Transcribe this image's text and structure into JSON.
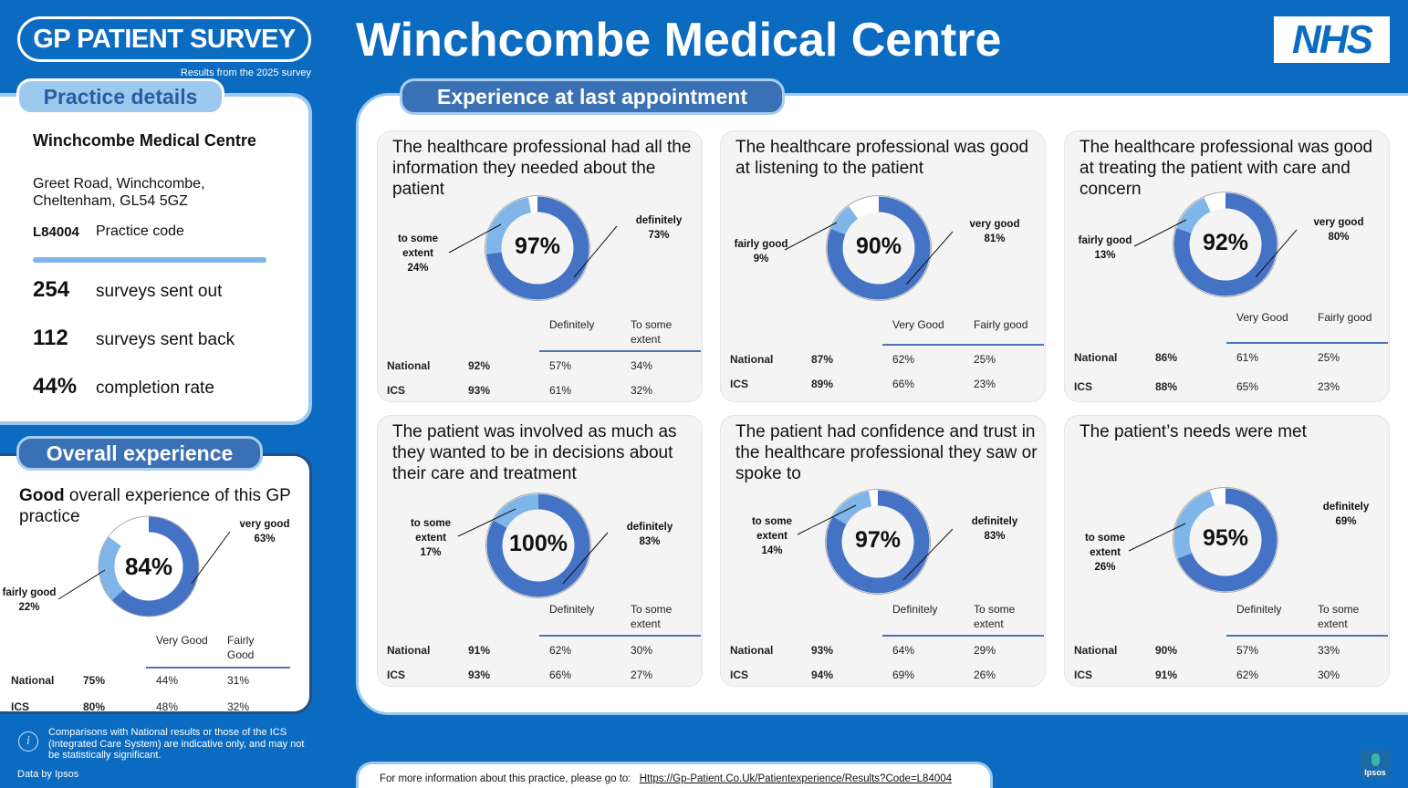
{
  "header": {
    "survey_logo": "GP PATIENT SURVEY",
    "survey_subtitle": "Results from the 2025 survey",
    "title": "Winchcombe Medical Centre",
    "nhs_logo": "NHS"
  },
  "practice": {
    "section_title": "Practice details",
    "name": "Winchcombe Medical Centre",
    "address_line1": "Greet Road, Winchcombe,",
    "address_line2": "Cheltenham, GL54 5GZ",
    "code": "L84004",
    "code_label": "Practice code",
    "stats": [
      {
        "value": "254",
        "label": "surveys sent out"
      },
      {
        "value": "112",
        "label": "surveys sent back"
      },
      {
        "value": "44%",
        "label": "completion rate"
      }
    ]
  },
  "overall": {
    "section_title": "Overall experience",
    "desc_bold": "Good",
    "desc_rest": " overall experience of this GP practice",
    "donut": {
      "pct": "84%",
      "primary": 63,
      "secondary": 22
    },
    "callout_primary": [
      "very good",
      "63%"
    ],
    "callout_secondary": [
      "fairly good",
      "22%"
    ],
    "table": {
      "headers": [
        "Very Good",
        "Fairly Good"
      ],
      "rows": [
        {
          "name": "National",
          "total": "75%",
          "a": "44%",
          "b": "31%"
        },
        {
          "name": "ICS",
          "total": "80%",
          "a": "48%",
          "b": "32%"
        }
      ]
    }
  },
  "experience": {
    "section_title": "Experience at last appointment",
    "cards": [
      {
        "title": "The healthcare professional had all the information they needed about the patient",
        "pct": "97%",
        "primary": 73,
        "secondary": 24,
        "callout_primary": [
          "definitely",
          "73%"
        ],
        "callout_secondary": [
          "to some",
          "extent",
          "24%"
        ],
        "headers": [
          "Definitely",
          "To some extent"
        ],
        "rows": [
          {
            "name": "National",
            "total": "92%",
            "a": "57%",
            "b": "34%"
          },
          {
            "name": "ICS",
            "total": "93%",
            "a": "61%",
            "b": "32%"
          }
        ]
      },
      {
        "title": "The healthcare professional was good at listening to the patient",
        "pct": "90%",
        "primary": 81,
        "secondary": 9,
        "callout_primary": [
          "very good",
          "81%"
        ],
        "callout_secondary": [
          "fairly good",
          "9%"
        ],
        "headers": [
          "Very Good",
          "Fairly good"
        ],
        "rows": [
          {
            "name": "National",
            "total": "87%",
            "a": "62%",
            "b": "25%"
          },
          {
            "name": "ICS",
            "total": "89%",
            "a": "66%",
            "b": "23%"
          }
        ]
      },
      {
        "title": "The healthcare professional was good at treating the patient with care and concern",
        "pct": "92%",
        "primary": 80,
        "secondary": 13,
        "callout_primary": [
          "very good",
          "80%"
        ],
        "callout_secondary": [
          "fairly good",
          "13%"
        ],
        "headers": [
          "Very Good",
          "Fairly good"
        ],
        "rows": [
          {
            "name": "National",
            "total": "86%",
            "a": "61%",
            "b": "25%"
          },
          {
            "name": "ICS",
            "total": "88%",
            "a": "65%",
            "b": "23%"
          }
        ]
      },
      {
        "title": "The patient was involved as much as they wanted to be in decisions about their care and treatment",
        "pct": "100%",
        "primary": 83,
        "secondary": 17,
        "callout_primary": [
          "definitely",
          "83%"
        ],
        "callout_secondary": [
          "to some",
          "extent",
          "17%"
        ],
        "headers": [
          "Definitely",
          "To some extent"
        ],
        "rows": [
          {
            "name": "National",
            "total": "91%",
            "a": "62%",
            "b": "30%"
          },
          {
            "name": "ICS",
            "total": "93%",
            "a": "66%",
            "b": "27%"
          }
        ]
      },
      {
        "title": "The patient had confidence and trust in the healthcare professional they saw or spoke to",
        "pct": "97%",
        "primary": 83,
        "secondary": 14,
        "callout_primary": [
          "definitely",
          "83%"
        ],
        "callout_secondary": [
          "to some",
          "extent",
          "14%"
        ],
        "headers": [
          "Definitely",
          "To some extent"
        ],
        "rows": [
          {
            "name": "National",
            "total": "93%",
            "a": "64%",
            "b": "29%"
          },
          {
            "name": "ICS",
            "total": "94%",
            "a": "69%",
            "b": "26%"
          }
        ]
      },
      {
        "title": "The patient’s needs were met",
        "pct": "95%",
        "primary": 69,
        "secondary": 26,
        "callout_primary": [
          "definitely",
          "69%"
        ],
        "callout_secondary": [
          "to some",
          "extent",
          "26%"
        ],
        "headers": [
          "Definitely",
          "To some extent"
        ],
        "rows": [
          {
            "name": "National",
            "total": "90%",
            "a": "57%",
            "b": "33%"
          },
          {
            "name": "ICS",
            "total": "91%",
            "a": "62%",
            "b": "30%"
          }
        ]
      }
    ]
  },
  "footer": {
    "note": "Comparisons with National results or those of the ICS (Integrated Care System) are indicative only, and may not be statistically significant.",
    "data_by": "Data by Ipsos",
    "more_info": "For more information about this practice, please go to:",
    "link": "Https://Gp-Patient.Co.Uk/Patientexperience/Results?Code=L84004",
    "ipsos_logo": "Ipsos"
  },
  "colors": {
    "background": "#0a6bc1",
    "donut_primary": "#4472c4",
    "donut_secondary": "#7fb5e8",
    "donut_rest": "#ffffff"
  }
}
